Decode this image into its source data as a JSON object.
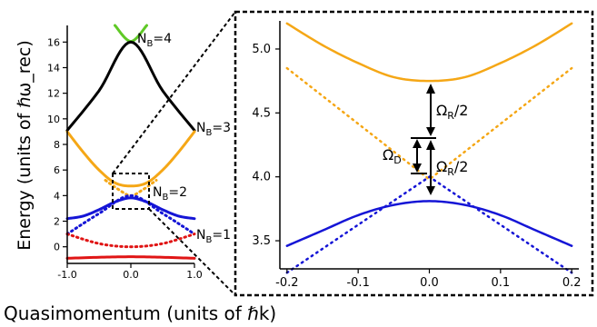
{
  "colors": {
    "band_green": "#5fc926",
    "band_black": "#000000",
    "band_orange": "#f5a716",
    "band_blue": "#1515d6",
    "band_red": "#e01515",
    "frame": "#000000"
  },
  "chart_data": [
    {
      "type": "line",
      "panel": "main",
      "xlabel": "Quasimomentum (units of ℏk)",
      "ylabel": "Energy (units of ℏω_rec)",
      "xlim": [
        -1.0,
        1.0
      ],
      "ylim": [
        -1.3,
        17.3
      ],
      "xticks": [
        "-1.0",
        "0.0",
        "1.0"
      ],
      "yticks": [
        "0",
        "2",
        "4",
        "6",
        "8",
        "10",
        "12",
        "14",
        "16"
      ],
      "band_labels": [
        {
          "main": "N",
          "sub": "B",
          "tail": "=4"
        },
        {
          "main": "N",
          "sub": "B",
          "tail": "=3"
        },
        {
          "main": "N",
          "sub": "B",
          "tail": "=2"
        },
        {
          "main": "N",
          "sub": "B",
          "tail": "=1"
        }
      ],
      "series": [
        {
          "key": "n5",
          "color_key": "band_green",
          "style": "solid",
          "x": [
            -0.25,
            0.0,
            0.25
          ],
          "y": [
            17.3,
            16.05,
            17.3
          ]
        },
        {
          "key": "n4",
          "color_key": "band_black",
          "style": "solid",
          "x": [
            -1.0,
            -0.5,
            0.0,
            0.5,
            1.0
          ],
          "y": [
            9.1,
            12.2,
            16.0,
            12.2,
            9.1
          ]
        },
        {
          "key": "n3",
          "color_key": "band_orange",
          "style": "solid",
          "x": [
            -1.0,
            -0.75,
            -0.5,
            -0.25,
            0.0,
            0.25,
            0.5,
            0.75,
            1.0
          ],
          "y": [
            9.0,
            7.4,
            6.0,
            5.0,
            4.75,
            5.0,
            6.0,
            7.4,
            9.0
          ]
        },
        {
          "key": "n3_free",
          "color_key": "band_orange",
          "style": "dotted",
          "x": [
            -0.4,
            -0.2,
            0.0,
            0.2,
            0.4
          ],
          "y": [
            5.2,
            4.5,
            4.0,
            4.5,
            5.2
          ]
        },
        {
          "key": "n2",
          "color_key": "band_blue",
          "style": "solid",
          "x": [
            -1.0,
            -0.75,
            -0.5,
            -0.25,
            0.0,
            0.25,
            0.5,
            0.75,
            1.0
          ],
          "y": [
            2.2,
            2.4,
            2.9,
            3.5,
            3.82,
            3.5,
            2.9,
            2.4,
            2.2
          ]
        },
        {
          "key": "n2_free",
          "color_key": "band_blue",
          "style": "dotted",
          "x": [
            -1.0,
            -0.5,
            0.0,
            0.5,
            1.0
          ],
          "y": [
            1.0,
            2.6,
            4.0,
            2.6,
            1.0
          ]
        },
        {
          "key": "n1_free",
          "color_key": "band_red",
          "style": "dotted",
          "x": [
            -1.0,
            -0.5,
            0.0,
            0.5,
            1.0
          ],
          "y": [
            1.0,
            0.25,
            0.0,
            0.25,
            1.0
          ]
        },
        {
          "key": "n1",
          "color_key": "band_red",
          "style": "solid",
          "x": [
            -1.0,
            -0.5,
            0.0,
            0.5,
            1.0
          ],
          "y": [
            -0.9,
            -0.82,
            -0.78,
            -0.82,
            -0.9
          ]
        }
      ]
    },
    {
      "type": "line",
      "panel": "zoom",
      "xlim": [
        -0.21,
        0.21
      ],
      "ylim": [
        3.28,
        5.22
      ],
      "xticks": [
        "-0.2",
        "-0.1",
        "0.0",
        "0.1",
        "0.2"
      ],
      "yticks": [
        "3.5",
        "4.0",
        "4.5",
        "5.0"
      ],
      "annotations": [
        {
          "main": "Ω",
          "sub": "R",
          "tail": "/2"
        },
        {
          "main": "Ω",
          "sub": "D",
          "tail": ""
        },
        {
          "main": "Ω",
          "sub": "R",
          "tail": "/2"
        }
      ],
      "series": [
        {
          "key": "upper",
          "color_key": "band_orange",
          "style": "solid",
          "x": [
            -0.2,
            -0.15,
            -0.1,
            -0.05,
            0.0,
            0.05,
            0.1,
            0.15,
            0.2
          ],
          "y": [
            5.2,
            5.03,
            4.89,
            4.78,
            4.75,
            4.78,
            4.89,
            5.03,
            5.2
          ]
        },
        {
          "key": "upper_free",
          "color_key": "band_orange",
          "style": "dotted",
          "x": [
            -0.2,
            0.0,
            0.2
          ],
          "y": [
            4.85,
            3.98,
            4.85
          ]
        },
        {
          "key": "lower",
          "color_key": "band_blue",
          "style": "solid",
          "x": [
            -0.2,
            -0.15,
            -0.1,
            -0.05,
            0.0,
            0.05,
            0.1,
            0.15,
            0.2
          ],
          "y": [
            3.46,
            3.58,
            3.7,
            3.78,
            3.81,
            3.78,
            3.7,
            3.58,
            3.46
          ]
        },
        {
          "key": "lower_free",
          "color_key": "band_blue",
          "style": "dotted",
          "x": [
            -0.2,
            0.0,
            0.2
          ],
          "y": [
            3.25,
            4.0,
            3.25
          ]
        }
      ]
    }
  ]
}
